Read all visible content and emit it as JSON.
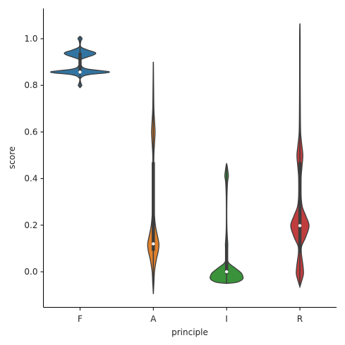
{
  "chart_data": {
    "type": "violin",
    "title": "",
    "xlabel": "principle",
    "ylabel": "score",
    "categories": [
      "F",
      "A",
      "I",
      "R"
    ],
    "ylim": [
      -0.15,
      1.13
    ],
    "yticks": [
      0.0,
      0.2,
      0.4,
      0.6,
      0.8,
      1.0
    ],
    "ytick_labels": [
      "0.0",
      "0.2",
      "0.4",
      "0.6",
      "0.8",
      "1.0"
    ],
    "grid": false,
    "violins": [
      {
        "category": "F",
        "color": "#3274a1",
        "min": 0.79,
        "max": 1.01,
        "q1": 0.855,
        "q3": 0.94,
        "median": 0.857,
        "density": [
          [
            0.79,
            0.0
          ],
          [
            0.8,
            0.06
          ],
          [
            0.81,
            0.03
          ],
          [
            0.83,
            0.02
          ],
          [
            0.845,
            0.25
          ],
          [
            0.857,
            1.0
          ],
          [
            0.87,
            0.25
          ],
          [
            0.885,
            0.04
          ],
          [
            0.91,
            0.03
          ],
          [
            0.93,
            0.45
          ],
          [
            0.94,
            0.52
          ],
          [
            0.95,
            0.3
          ],
          [
            0.965,
            0.03
          ],
          [
            0.99,
            0.03
          ],
          [
            1.0,
            0.07
          ],
          [
            1.01,
            0.0
          ]
        ]
      },
      {
        "category": "A",
        "color": "#e1812c",
        "min": -0.095,
        "max": 0.9,
        "q1": 0.09,
        "q3": 0.47,
        "median": 0.12,
        "density": [
          [
            -0.095,
            0.0
          ],
          [
            -0.05,
            0.02
          ],
          [
            0.0,
            0.04
          ],
          [
            0.05,
            0.1
          ],
          [
            0.09,
            0.17
          ],
          [
            0.12,
            0.19
          ],
          [
            0.16,
            0.13
          ],
          [
            0.2,
            0.07
          ],
          [
            0.25,
            0.035
          ],
          [
            0.3,
            0.02
          ],
          [
            0.4,
            0.015
          ],
          [
            0.5,
            0.02
          ],
          [
            0.56,
            0.045
          ],
          [
            0.6,
            0.06
          ],
          [
            0.64,
            0.045
          ],
          [
            0.7,
            0.02
          ],
          [
            0.8,
            0.01
          ],
          [
            0.9,
            0.0
          ]
        ]
      },
      {
        "category": "I",
        "color": "#3a923a",
        "min": -0.05,
        "max": 0.465,
        "q1": -0.01,
        "q3": 0.12,
        "median": 0.0,
        "density": [
          [
            -0.05,
            0.0
          ],
          [
            -0.045,
            0.35
          ],
          [
            -0.03,
            0.55
          ],
          [
            -0.01,
            0.52
          ],
          [
            0.0,
            0.45
          ],
          [
            0.02,
            0.25
          ],
          [
            0.04,
            0.06
          ],
          [
            0.07,
            0.02
          ],
          [
            0.1,
            0.035
          ],
          [
            0.12,
            0.04
          ],
          [
            0.15,
            0.025
          ],
          [
            0.2,
            0.01
          ],
          [
            0.3,
            0.01
          ],
          [
            0.38,
            0.03
          ],
          [
            0.41,
            0.06
          ],
          [
            0.435,
            0.04
          ],
          [
            0.465,
            0.0
          ]
        ]
      },
      {
        "category": "R",
        "color": "#c03d3e",
        "min": -0.065,
        "max": 1.065,
        "q1": 0.08,
        "q3": 0.47,
        "median": 0.198,
        "density": [
          [
            -0.065,
            0.0
          ],
          [
            -0.04,
            0.06
          ],
          [
            -0.01,
            0.12
          ],
          [
            0.02,
            0.11
          ],
          [
            0.05,
            0.08
          ],
          [
            0.08,
            0.05
          ],
          [
            0.11,
            0.06
          ],
          [
            0.15,
            0.2
          ],
          [
            0.198,
            0.31
          ],
          [
            0.24,
            0.2
          ],
          [
            0.28,
            0.08
          ],
          [
            0.33,
            0.04
          ],
          [
            0.4,
            0.04
          ],
          [
            0.45,
            0.07
          ],
          [
            0.5,
            0.1
          ],
          [
            0.55,
            0.06
          ],
          [
            0.6,
            0.025
          ],
          [
            0.7,
            0.015
          ],
          [
            0.85,
            0.01
          ],
          [
            1.0,
            0.01
          ],
          [
            1.065,
            0.0
          ]
        ]
      }
    ]
  }
}
